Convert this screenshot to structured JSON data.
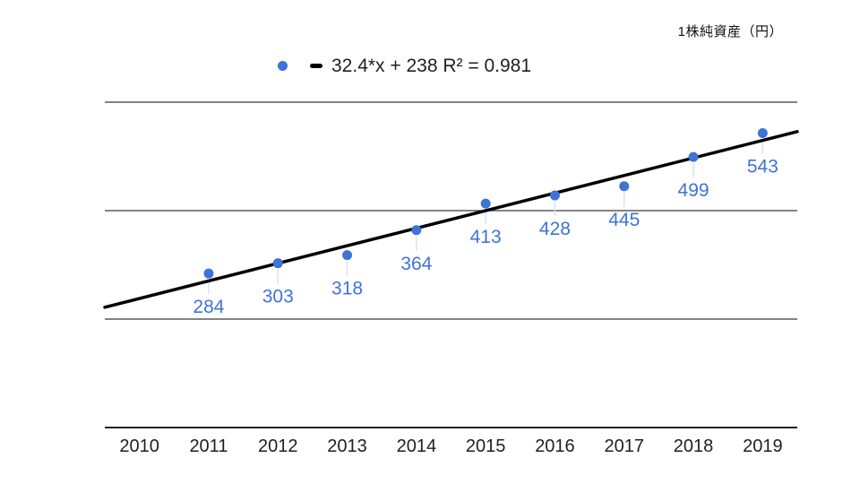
{
  "header": {
    "title": "1株純資産（円）"
  },
  "legend": {
    "label": "32.4*x + 238 R² = 0.981",
    "point_marker_color": "#3e73d8",
    "trend_marker_color": "#000000"
  },
  "chart_data": {
    "type": "scatter",
    "title": "1株純資産（円）",
    "series": [
      {
        "name": "1株純資産（円）",
        "x": [
          2011,
          2012,
          2013,
          2014,
          2015,
          2016,
          2017,
          2018,
          2019
        ],
        "values": [
          284,
          303,
          318,
          364,
          413,
          428,
          445,
          499,
          543
        ]
      }
    ],
    "point_labels": [
      "284",
      "303",
      "318",
      "364",
      "413",
      "428",
      "445",
      "499",
      "543"
    ],
    "categories": [
      "2010",
      "2011",
      "2012",
      "2013",
      "2014",
      "2015",
      "2016",
      "2017",
      "2018",
      "2019"
    ],
    "trendline": {
      "slope": 32.4,
      "intercept": 238,
      "intercept_at_x": 2010,
      "r_squared": 0.981,
      "label": "32.4*x + 238 R² = 0.981"
    },
    "xlim": [
      2009.5,
      2019.5
    ],
    "ylim": [
      0,
      600
    ],
    "y_gridline_step": 200,
    "grid": true,
    "y_tick_labels_visible": false,
    "legend_position": "top",
    "colors": {
      "point": "#3e73d8",
      "point_label": "#3e73d8",
      "trendline": "#000000",
      "gridline": "#3a3a3a",
      "axis_line": "#222222",
      "leader_line": "#d7e2f6",
      "tick_label": "#1f1f1f",
      "legend_text": "#1f1f1f",
      "title_text": "#111111"
    }
  }
}
